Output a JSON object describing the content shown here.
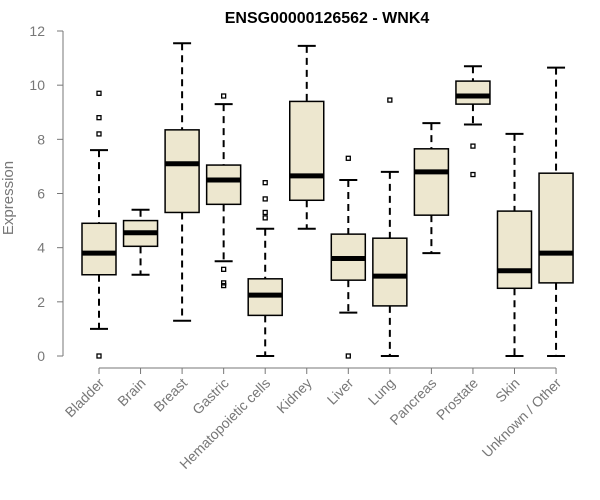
{
  "chart_data": {
    "type": "boxplot",
    "title": "ENSG00000126562 - WNK4",
    "xlabel": "",
    "ylabel": "Expression",
    "ylim": [
      0,
      12
    ],
    "yticks": [
      0,
      2,
      4,
      6,
      8,
      10,
      12
    ],
    "grid": false,
    "box_color": "#ede7cf",
    "categories": [
      "Bladder",
      "Brain",
      "Breast",
      "Gastric",
      "Hematopoietic cells",
      "Kidney",
      "Liver",
      "Lung",
      "Pancreas",
      "Prostate",
      "Skin",
      "Unknown / Other"
    ],
    "boxes": [
      {
        "name": "Bladder",
        "whisker_low": 1.0,
        "q1": 3.0,
        "median": 3.8,
        "q3": 4.9,
        "whisker_high": 7.6,
        "outliers": [
          0.0,
          8.2,
          8.8,
          9.7
        ]
      },
      {
        "name": "Brain",
        "whisker_low": 3.0,
        "q1": 4.05,
        "median": 4.55,
        "q3": 5.0,
        "whisker_high": 5.4,
        "outliers": []
      },
      {
        "name": "Breast",
        "whisker_low": 1.3,
        "q1": 5.3,
        "median": 7.1,
        "q3": 8.35,
        "whisker_high": 11.55,
        "outliers": []
      },
      {
        "name": "Gastric",
        "whisker_low": 3.5,
        "q1": 5.6,
        "median": 6.5,
        "q3": 7.05,
        "whisker_high": 9.3,
        "outliers": [
          2.6,
          2.7,
          3.2,
          9.6
        ]
      },
      {
        "name": "Hematopoietic cells",
        "whisker_low": 0.0,
        "q1": 1.5,
        "median": 2.25,
        "q3": 2.85,
        "whisker_high": 4.7,
        "outliers": [
          5.1,
          5.3,
          5.8,
          6.4
        ]
      },
      {
        "name": "Kidney",
        "whisker_low": 4.7,
        "q1": 5.75,
        "median": 6.65,
        "q3": 9.4,
        "whisker_high": 11.45,
        "outliers": []
      },
      {
        "name": "Liver",
        "whisker_low": 1.6,
        "q1": 2.8,
        "median": 3.6,
        "q3": 4.5,
        "whisker_high": 6.5,
        "outliers": [
          0.0,
          7.3
        ]
      },
      {
        "name": "Lung",
        "whisker_low": 0.0,
        "q1": 1.85,
        "median": 2.95,
        "q3": 4.35,
        "whisker_high": 6.8,
        "outliers": [
          9.45
        ]
      },
      {
        "name": "Pancreas",
        "whisker_low": 3.8,
        "q1": 5.2,
        "median": 6.8,
        "q3": 7.65,
        "whisker_high": 8.6,
        "outliers": []
      },
      {
        "name": "Prostate",
        "whisker_low": 8.55,
        "q1": 9.3,
        "median": 9.6,
        "q3": 10.15,
        "whisker_high": 10.7,
        "outliers": [
          6.7,
          7.75
        ]
      },
      {
        "name": "Skin",
        "whisker_low": 0.0,
        "q1": 2.5,
        "median": 3.15,
        "q3": 5.35,
        "whisker_high": 8.2,
        "outliers": []
      },
      {
        "name": "Unknown / Other",
        "whisker_low": 0.0,
        "q1": 2.7,
        "median": 3.8,
        "q3": 6.75,
        "whisker_high": 10.65,
        "outliers": []
      }
    ]
  }
}
